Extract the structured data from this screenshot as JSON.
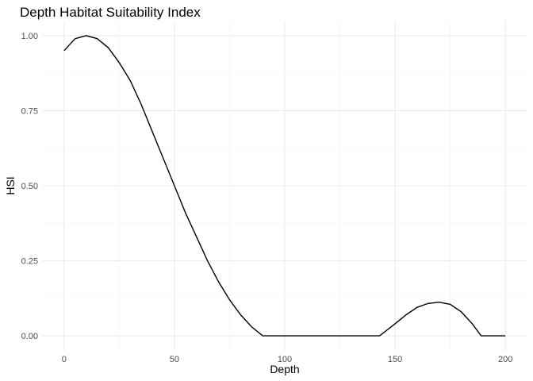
{
  "chart_data": {
    "type": "line",
    "title": "Depth Habitat Suitability Index",
    "xlabel": "Depth",
    "ylabel": "HSI",
    "xlim": [
      -10,
      210
    ],
    "ylim": [
      -0.05,
      1.05
    ],
    "x_ticks": [
      0,
      50,
      100,
      150,
      200
    ],
    "x_tick_labels": [
      "0",
      "50",
      "100",
      "150",
      "200"
    ],
    "y_ticks": [
      0,
      0.25,
      0.5,
      0.75,
      1.0
    ],
    "y_tick_labels": [
      "0.00",
      "0.25",
      "0.50",
      "0.75",
      "1.00"
    ],
    "grid": true,
    "series": [
      {
        "x": [
          0,
          5,
          10,
          15,
          20,
          25,
          30,
          35,
          40,
          45,
          50,
          55,
          60,
          65,
          70,
          75,
          80,
          85,
          90,
          100,
          110,
          120,
          130,
          143,
          150,
          155,
          160,
          165,
          170,
          175,
          180,
          185,
          189,
          190,
          200
        ],
        "y": [
          0.95,
          0.99,
          1.0,
          0.99,
          0.96,
          0.91,
          0.85,
          0.77,
          0.68,
          0.59,
          0.5,
          0.41,
          0.33,
          0.25,
          0.18,
          0.12,
          0.07,
          0.03,
          0.0,
          0.0,
          0.0,
          0.0,
          0.0,
          0.0,
          0.04,
          0.07,
          0.095,
          0.108,
          0.112,
          0.105,
          0.08,
          0.04,
          0.0,
          0.0,
          0.0
        ]
      }
    ]
  }
}
